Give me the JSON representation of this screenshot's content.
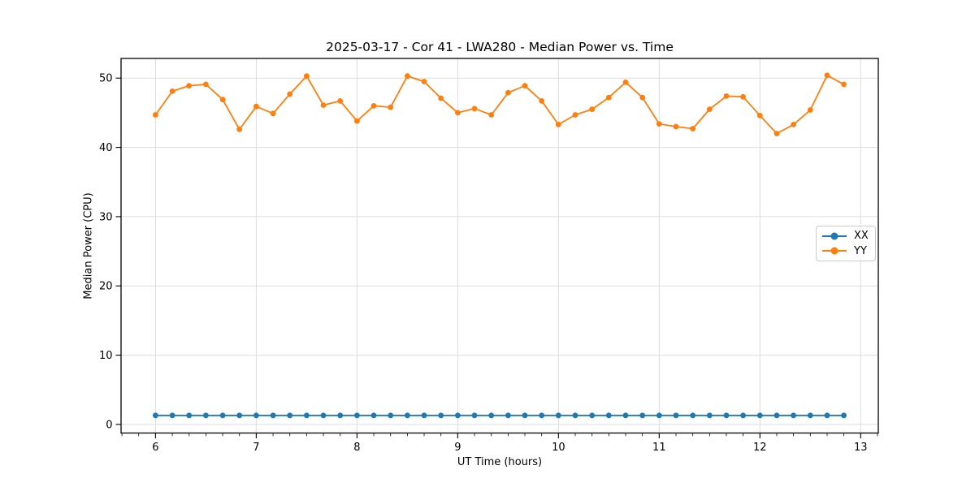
{
  "chart_data": {
    "type": "line",
    "title": "2025-03-17 - Cor 41 - LWA280 - Median Power vs. Time",
    "xlabel": "UT Time (hours)",
    "ylabel": "Median Power (CPU)",
    "x": [
      6.0,
      6.1667,
      6.3333,
      6.5,
      6.6667,
      6.8333,
      7.0,
      7.1667,
      7.3333,
      7.5,
      7.6667,
      7.8333,
      8.0,
      8.1667,
      8.3333,
      8.5,
      8.6667,
      8.8333,
      9.0,
      9.1667,
      9.3333,
      9.5,
      9.6667,
      9.8333,
      10.0,
      10.1667,
      10.3333,
      10.5,
      10.6667,
      10.8333,
      11.0,
      11.1667,
      11.3333,
      11.5,
      11.6667,
      11.8333,
      12.0,
      12.1667,
      12.3333,
      12.5,
      12.6667,
      12.8333
    ],
    "series": [
      {
        "name": "XX",
        "color": "#1f77b4",
        "values": [
          1.3,
          1.3,
          1.3,
          1.3,
          1.3,
          1.3,
          1.3,
          1.3,
          1.3,
          1.3,
          1.3,
          1.3,
          1.3,
          1.3,
          1.3,
          1.3,
          1.3,
          1.3,
          1.3,
          1.3,
          1.3,
          1.3,
          1.3,
          1.3,
          1.3,
          1.3,
          1.3,
          1.3,
          1.3,
          1.3,
          1.3,
          1.3,
          1.3,
          1.3,
          1.3,
          1.3,
          1.3,
          1.3,
          1.3,
          1.3,
          1.3,
          1.3
        ]
      },
      {
        "name": "YY",
        "color": "#ff7f0e",
        "values": [
          44.7,
          48.1,
          48.9,
          49.1,
          46.9,
          42.6,
          45.9,
          44.9,
          47.7,
          50.3,
          46.1,
          46.7,
          43.8,
          46.0,
          45.8,
          50.3,
          49.5,
          47.1,
          45.0,
          45.6,
          44.7,
          47.9,
          48.9,
          46.7,
          43.3,
          44.7,
          45.5,
          47.2,
          49.4,
          47.2,
          43.4,
          43.0,
          42.7,
          45.5,
          47.4,
          47.3,
          44.6,
          42.0,
          43.3,
          45.4,
          50.4,
          49.1
        ]
      }
    ],
    "xlim": [
      5.658,
      13.175
    ],
    "ylim": [
      -1.24,
      52.84
    ],
    "xticks": [
      6,
      7,
      8,
      9,
      10,
      11,
      12,
      13
    ],
    "yticks": [
      0,
      10,
      20,
      30,
      40,
      50
    ],
    "x_minor_per_major": 6,
    "grid": true,
    "legend": {
      "position": "center-right",
      "entries": [
        "XX",
        "YY"
      ]
    },
    "colors": {
      "grid": "#dcdcdc",
      "axis": "#000000",
      "text": "#000000",
      "background": "#ffffff"
    }
  }
}
